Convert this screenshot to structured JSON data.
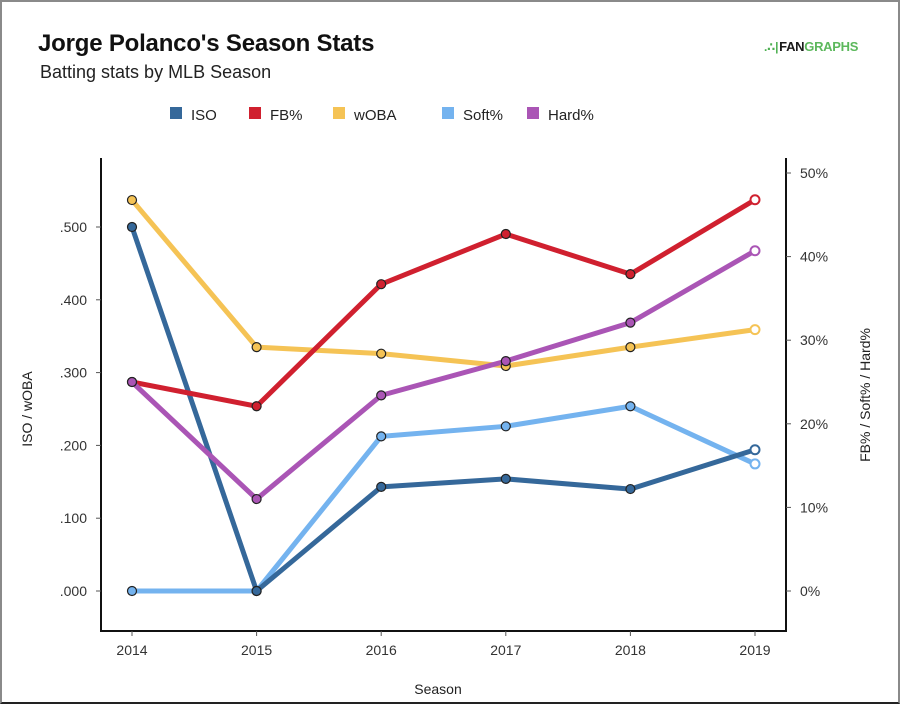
{
  "header": {
    "title": "Jorge Polanco's Season Stats",
    "subtitle": "Batting stats by MLB Season",
    "logo_mark": ".∴|",
    "logo_fan": "FAN",
    "logo_graphs": "GRAPHS"
  },
  "chart_data": {
    "type": "line",
    "title": "Jorge Polanco's Season Stats",
    "subtitle": "Batting stats by MLB Season",
    "xlabel": "Season",
    "ylabel_left": "ISO / wOBA",
    "ylabel_right": "FB% / Soft% / Hard%",
    "x": [
      "2014",
      "2015",
      "2016",
      "2017",
      "2018",
      "2019"
    ],
    "ylim_left": [
      -0.05,
      0.58
    ],
    "yticks_left": [
      {
        "value": 0.0,
        "label": ".000"
      },
      {
        "value": 0.1,
        "label": ".100"
      },
      {
        "value": 0.2,
        "label": ".200"
      },
      {
        "value": 0.3,
        "label": ".300"
      },
      {
        "value": 0.4,
        "label": ".400"
      },
      {
        "value": 0.5,
        "label": ".500"
      }
    ],
    "ylim_right": [
      -5,
      52
    ],
    "yticks_right": [
      {
        "value": 0,
        "label": "0%"
      },
      {
        "value": 10,
        "label": "10%"
      },
      {
        "value": 20,
        "label": "20%"
      },
      {
        "value": 30,
        "label": "30%"
      },
      {
        "value": 40,
        "label": "40%"
      },
      {
        "value": 50,
        "label": "50%"
      }
    ],
    "grid": false,
    "legend_position": "top-center",
    "series": [
      {
        "name": "ISO",
        "axis": "left",
        "color": "#35689a",
        "values": [
          0.5,
          0.0,
          0.143,
          0.154,
          0.14,
          0.194
        ]
      },
      {
        "name": "FB%",
        "axis": "right",
        "color": "#d0202f",
        "values": [
          25.0,
          22.1,
          36.7,
          42.7,
          37.9,
          46.8
        ]
      },
      {
        "name": "wOBA",
        "axis": "left",
        "color": "#f5c355",
        "values": [
          0.537,
          0.335,
          0.326,
          0.309,
          0.335,
          0.359
        ]
      },
      {
        "name": "Soft%",
        "axis": "right",
        "color": "#74b3ef",
        "values": [
          0.0,
          0.0,
          18.5,
          19.7,
          22.1,
          15.2
        ]
      },
      {
        "name": "Hard%",
        "axis": "right",
        "color": "#aa55b5",
        "values": [
          25.0,
          11.0,
          23.4,
          27.5,
          32.1,
          40.7
        ]
      }
    ]
  }
}
